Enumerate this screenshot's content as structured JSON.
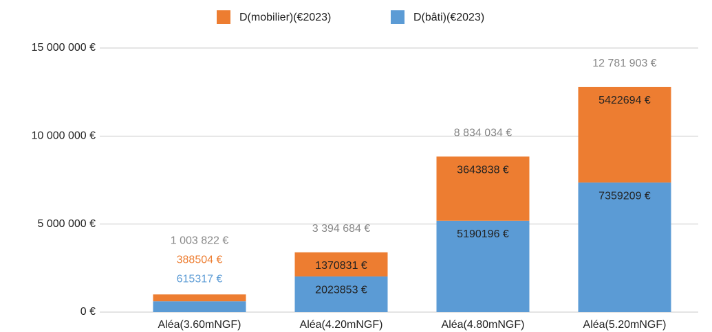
{
  "chart_data": {
    "type": "bar",
    "stacked": true,
    "categories": [
      "Aléa(3.60mNGF)",
      "Aléa(4.20mNGF)",
      "Aléa(4.80mNGF)",
      "Aléa(5.20mNGF)"
    ],
    "series": [
      {
        "name": "D(bâti)(€2023)",
        "color": "#5b9bd5",
        "values": [
          615317,
          2023853,
          5190196,
          7359209
        ],
        "value_labels": [
          "615317 €",
          "2023853 €",
          "5190196 €",
          "7359209 €"
        ]
      },
      {
        "name": "D(mobilier)(€2023)",
        "color": "#ed7d31",
        "values": [
          388504,
          1370831,
          3643838,
          5422694
        ],
        "value_labels": [
          "388504 €",
          "1370831 €",
          "3643838 €",
          "5422694 €"
        ]
      }
    ],
    "totals": [
      1003822,
      3394684,
      8834034,
      12781903
    ],
    "total_labels": [
      "1 003 822 €",
      "3 394 684 €",
      "8 834 034 €",
      "12 781 903 €"
    ],
    "ylim": [
      0,
      15000000
    ],
    "yticks": [
      {
        "value": 0,
        "label": "0 €"
      },
      {
        "value": 5000000,
        "label": "5 000 000 €"
      },
      {
        "value": 10000000,
        "label": "10 000 000 €"
      },
      {
        "value": 15000000,
        "label": "15 000 000 €"
      }
    ],
    "grid": true,
    "legend": "top"
  }
}
